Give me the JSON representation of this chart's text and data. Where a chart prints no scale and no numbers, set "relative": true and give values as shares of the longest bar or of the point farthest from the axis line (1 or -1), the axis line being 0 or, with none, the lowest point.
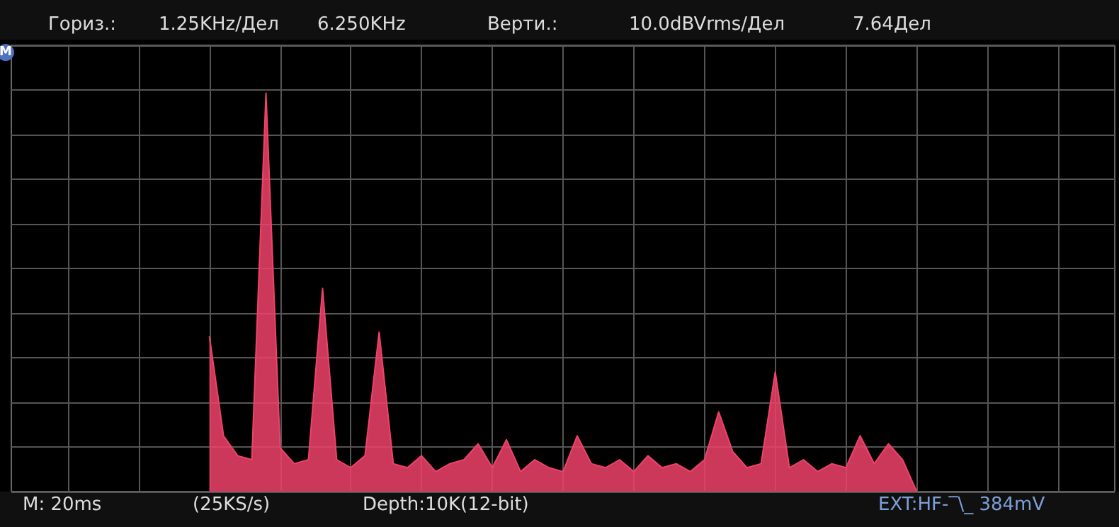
{
  "chart_data": {
    "type": "area",
    "relative": true,
    "grid": true,
    "color": "#f0426a",
    "annotations": [
      "Гориз.:",
      "1.25KHz/Дел",
      "6.250KHz",
      "Верти.:",
      "10.0dBVrms/Дел",
      "7.64Дел",
      "M",
      "M: 20ms",
      "(25KS/s)",
      "Depth:10K(12-bit)",
      "EXT:HF-‾\\_ 384mV"
    ],
    "categories": [
      null,
      null,
      null,
      null,
      null,
      null,
      null,
      null,
      null,
      null,
      null,
      null,
      null,
      null,
      null,
      null,
      null,
      null,
      null,
      null,
      null,
      null,
      null,
      null,
      null,
      null,
      null,
      null,
      null,
      null,
      null,
      null,
      null,
      null,
      null,
      null,
      null,
      null,
      null,
      null,
      null,
      null,
      null,
      null,
      null,
      null,
      null,
      null,
      null,
      null,
      null,
      null,
      null,
      null,
      null,
      null,
      null,
      null,
      null,
      null,
      null,
      null,
      null,
      null,
      null,
      null,
      null,
      null,
      null,
      null,
      null,
      null,
      null,
      null,
      null,
      null,
      null,
      null,
      null
    ],
    "values": [
      null,
      null,
      null,
      null,
      null,
      null,
      null,
      null,
      null,
      null,
      null,
      null,
      null,
      null,
      0.39,
      0.14,
      0.09,
      0.08,
      1.0,
      0.11,
      0.07,
      0.08,
      0.51,
      0.08,
      0.06,
      0.09,
      0.4,
      0.07,
      0.06,
      0.09,
      0.05,
      0.07,
      0.08,
      0.12,
      0.06,
      0.13,
      0.05,
      0.08,
      0.06,
      0.05,
      0.14,
      0.07,
      0.06,
      0.08,
      0.05,
      0.09,
      0.06,
      0.07,
      0.05,
      0.08,
      0.2,
      0.1,
      0.06,
      0.07,
      0.3,
      0.06,
      0.08,
      0.05,
      0.07,
      0.06,
      0.14,
      0.07,
      0.12,
      0.08,
      0,
      null,
      null,
      null,
      null,
      null,
      null,
      null,
      null,
      null,
      null,
      null,
      null,
      null,
      null
    ]
  }
}
